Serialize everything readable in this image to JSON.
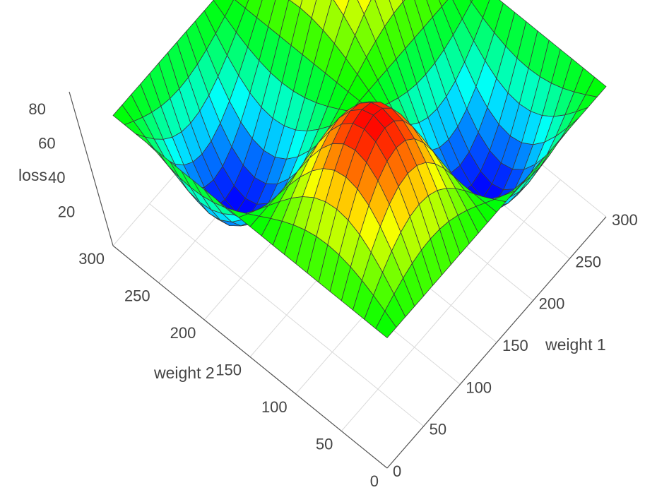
{
  "chart_data": {
    "type": "surface",
    "title": "",
    "xlabel": "weight 1",
    "ylabel": "weight 2",
    "zlabel": "loss",
    "x_ticks": [
      0,
      50,
      100,
      150,
      200,
      250,
      300
    ],
    "y_ticks": [
      0,
      50,
      100,
      150,
      200,
      250,
      300
    ],
    "z_ticks": [
      20,
      40,
      60,
      80
    ],
    "x_range": [
      0,
      300
    ],
    "y_range": [
      0,
      300
    ],
    "z_range": [
      0,
      90
    ],
    "grid": true,
    "grid_points": [
      0,
      12.5,
      25,
      37.5,
      50,
      62.5,
      75,
      87.5,
      100,
      112.5,
      125,
      137.5,
      150,
      162.5,
      175,
      187.5,
      200,
      212.5,
      225,
      237.5,
      250,
      262.5,
      275,
      287.5,
      300
    ],
    "surface_formula": "loss = 50 + 40 * sin(pi * weight1 / 150) * sin(pi * weight2 / 150)",
    "peaks": [
      {
        "weight1": 75,
        "weight2": 75,
        "loss": 90
      },
      {
        "weight1": 225,
        "weight2": 225,
        "loss": 90
      }
    ],
    "troughs": [
      {
        "weight1": 75,
        "weight2": 225,
        "loss": 10
      },
      {
        "weight1": 225,
        "weight2": 75,
        "loss": 10
      }
    ],
    "colormap": [
      "#0000ff",
      "#00ffff",
      "#00ff00",
      "#ffff00",
      "#ff0000"
    ]
  }
}
